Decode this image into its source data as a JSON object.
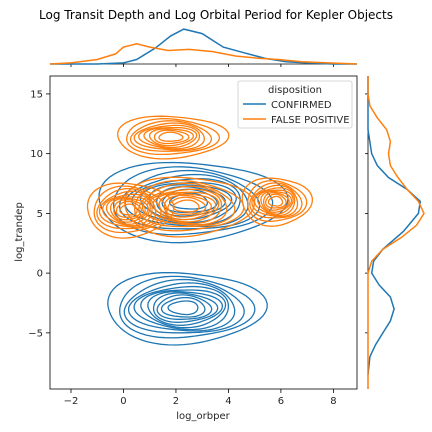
{
  "chart_data": {
    "type": "kde-joint",
    "title": "Log Transit Depth and Log Orbital Period for Kepler Objects",
    "xlabel": "log_orbper",
    "ylabel": "log_trandep",
    "xlim": [
      -2.8,
      8.9
    ],
    "ylim": [
      -9.7,
      16.5
    ],
    "xticks": [
      -2,
      0,
      2,
      4,
      6,
      8
    ],
    "yticks": [
      -5,
      0,
      5,
      10,
      15
    ],
    "grid": false,
    "legend": {
      "title": "disposition",
      "position": "upper-right",
      "entries": [
        "CONFIRMED",
        "FALSE POSITIVE"
      ]
    },
    "series": [
      {
        "name": "CONFIRMED",
        "color": "#1f77b4",
        "clusters": [
          {
            "center": [
              2.5,
              6.0
            ],
            "sigma": [
              1.75,
              1.75
            ],
            "peak": 1.0
          },
          {
            "center": [
              2.3,
              -2.9
            ],
            "sigma": [
              1.45,
              1.55
            ],
            "peak": 1.15
          }
        ],
        "x_marginal": [
          [
            -2.8,
            0.0
          ],
          [
            -1.0,
            0.0
          ],
          [
            0.0,
            0.01
          ],
          [
            0.5,
            0.04
          ],
          [
            1.2,
            0.14
          ],
          [
            1.8,
            0.25
          ],
          [
            2.3,
            0.31
          ],
          [
            3.0,
            0.27
          ],
          [
            3.8,
            0.15
          ],
          [
            4.6,
            0.1
          ],
          [
            5.4,
            0.05
          ],
          [
            6.2,
            0.02
          ],
          [
            7.0,
            0.01
          ],
          [
            8.0,
            0.0
          ],
          [
            8.9,
            0.0
          ]
        ],
        "y_marginal": [
          [
            -8.5,
            0.0
          ],
          [
            -7.0,
            0.01
          ],
          [
            -6.0,
            0.04
          ],
          [
            -5.0,
            0.08
          ],
          [
            -4.0,
            0.12
          ],
          [
            -3.0,
            0.14
          ],
          [
            -2.0,
            0.12
          ],
          [
            -1.0,
            0.06
          ],
          [
            0.0,
            0.02
          ],
          [
            1.0,
            0.03
          ],
          [
            2.0,
            0.08
          ],
          [
            3.5,
            0.19
          ],
          [
            5.0,
            0.27
          ],
          [
            6.0,
            0.28
          ],
          [
            7.0,
            0.21
          ],
          [
            8.0,
            0.11
          ],
          [
            9.0,
            0.05
          ],
          [
            10.0,
            0.02
          ],
          [
            12.0,
            0.0
          ],
          [
            16.5,
            0.0
          ]
        ]
      },
      {
        "name": "FALSE POSITIVE",
        "color": "#ff7f0e",
        "clusters": [
          {
            "center": [
              0.2,
              5.3
            ],
            "sigma": [
              0.8,
              1.2
            ],
            "peak": 1.0
          },
          {
            "center": [
              2.4,
              5.6
            ],
            "sigma": [
              1.2,
              1.3
            ],
            "peak": 0.95
          },
          {
            "center": [
              5.8,
              6.0
            ],
            "sigma": [
              0.65,
              1.05
            ],
            "peak": 1.0
          },
          {
            "center": [
              1.8,
              11.4
            ],
            "sigma": [
              1.05,
              0.95
            ],
            "peak": 0.65
          }
        ],
        "x_marginal": [
          [
            -2.8,
            0.0
          ],
          [
            -2.0,
            0.01
          ],
          [
            -1.0,
            0.04
          ],
          [
            -0.3,
            0.09
          ],
          [
            0.0,
            0.15
          ],
          [
            0.5,
            0.18
          ],
          [
            1.0,
            0.15
          ],
          [
            1.7,
            0.12
          ],
          [
            2.5,
            0.13
          ],
          [
            3.4,
            0.11
          ],
          [
            4.3,
            0.07
          ],
          [
            5.2,
            0.05
          ],
          [
            5.9,
            0.04
          ],
          [
            6.8,
            0.02
          ],
          [
            7.8,
            0.01
          ],
          [
            8.9,
            0.0
          ]
        ],
        "y_marginal": [
          [
            -9.7,
            0.0
          ],
          [
            0.0,
            0.0
          ],
          [
            1.0,
            0.02
          ],
          [
            2.0,
            0.08
          ],
          [
            3.0,
            0.18
          ],
          [
            4.0,
            0.26
          ],
          [
            5.0,
            0.3
          ],
          [
            6.0,
            0.27
          ],
          [
            7.0,
            0.21
          ],
          [
            8.0,
            0.16
          ],
          [
            9.0,
            0.12
          ],
          [
            10.0,
            0.11
          ],
          [
            11.0,
            0.12
          ],
          [
            12.0,
            0.1
          ],
          [
            13.0,
            0.05
          ],
          [
            14.0,
            0.01
          ],
          [
            15.0,
            0.0
          ],
          [
            16.5,
            0.0
          ]
        ]
      }
    ]
  }
}
